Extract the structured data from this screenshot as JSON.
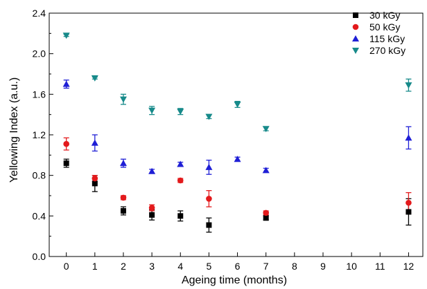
{
  "chart_data": {
    "type": "scatter",
    "title": "",
    "xlabel": "Ageing time (months)",
    "ylabel": "Yellowing Index (a.u.)",
    "xlim": [
      -0.6,
      12.5
    ],
    "ylim": [
      0.0,
      2.4
    ],
    "x_ticks": [
      "0",
      "1",
      "2",
      "3",
      "4",
      "5",
      "6",
      "7",
      "8",
      "9",
      "10",
      "11",
      "12"
    ],
    "y_ticks": [
      "0.0",
      "0.4",
      "0.8",
      "1.2",
      "1.6",
      "2.0",
      "2.4"
    ],
    "grid": false,
    "legend_position": "top-right",
    "series": [
      {
        "name": "30 kGy",
        "color": "#000000",
        "marker": "square",
        "x": [
          0,
          1,
          2,
          3,
          4,
          5,
          7,
          12
        ],
        "y": [
          0.92,
          0.72,
          0.45,
          0.41,
          0.4,
          0.31,
          0.38,
          0.44
        ],
        "err": [
          0.04,
          0.08,
          0.04,
          0.05,
          0.05,
          0.07,
          0.02,
          0.13
        ]
      },
      {
        "name": "50 kGy",
        "color": "#e31a1c",
        "marker": "circle",
        "x": [
          0,
          1,
          2,
          3,
          4,
          5,
          7,
          12
        ],
        "y": [
          1.11,
          0.77,
          0.58,
          0.48,
          0.75,
          0.57,
          0.43,
          0.53
        ],
        "err": [
          0.06,
          0.03,
          0.02,
          0.03,
          0.02,
          0.08,
          0.02,
          0.1
        ]
      },
      {
        "name": "115 kGy",
        "color": "#1f1fd6",
        "marker": "triangle-up",
        "x": [
          0,
          1,
          2,
          3,
          4,
          5,
          6,
          7,
          12
        ],
        "y": [
          1.7,
          1.12,
          0.92,
          0.84,
          0.91,
          0.88,
          0.96,
          0.85,
          1.17
        ],
        "err": [
          0.04,
          0.08,
          0.04,
          0.02,
          0.02,
          0.07,
          0.02,
          0.02,
          0.11
        ]
      },
      {
        "name": "270 kGy",
        "color": "#178a8a",
        "marker": "triangle-down",
        "x": [
          0,
          1,
          2,
          3,
          4,
          5,
          6,
          7,
          12
        ],
        "y": [
          2.18,
          1.76,
          1.55,
          1.44,
          1.43,
          1.38,
          1.5,
          1.26,
          1.69
        ],
        "err": [
          0.01,
          0.01,
          0.05,
          0.04,
          0.03,
          0.02,
          0.03,
          0.02,
          0.06
        ]
      }
    ]
  }
}
